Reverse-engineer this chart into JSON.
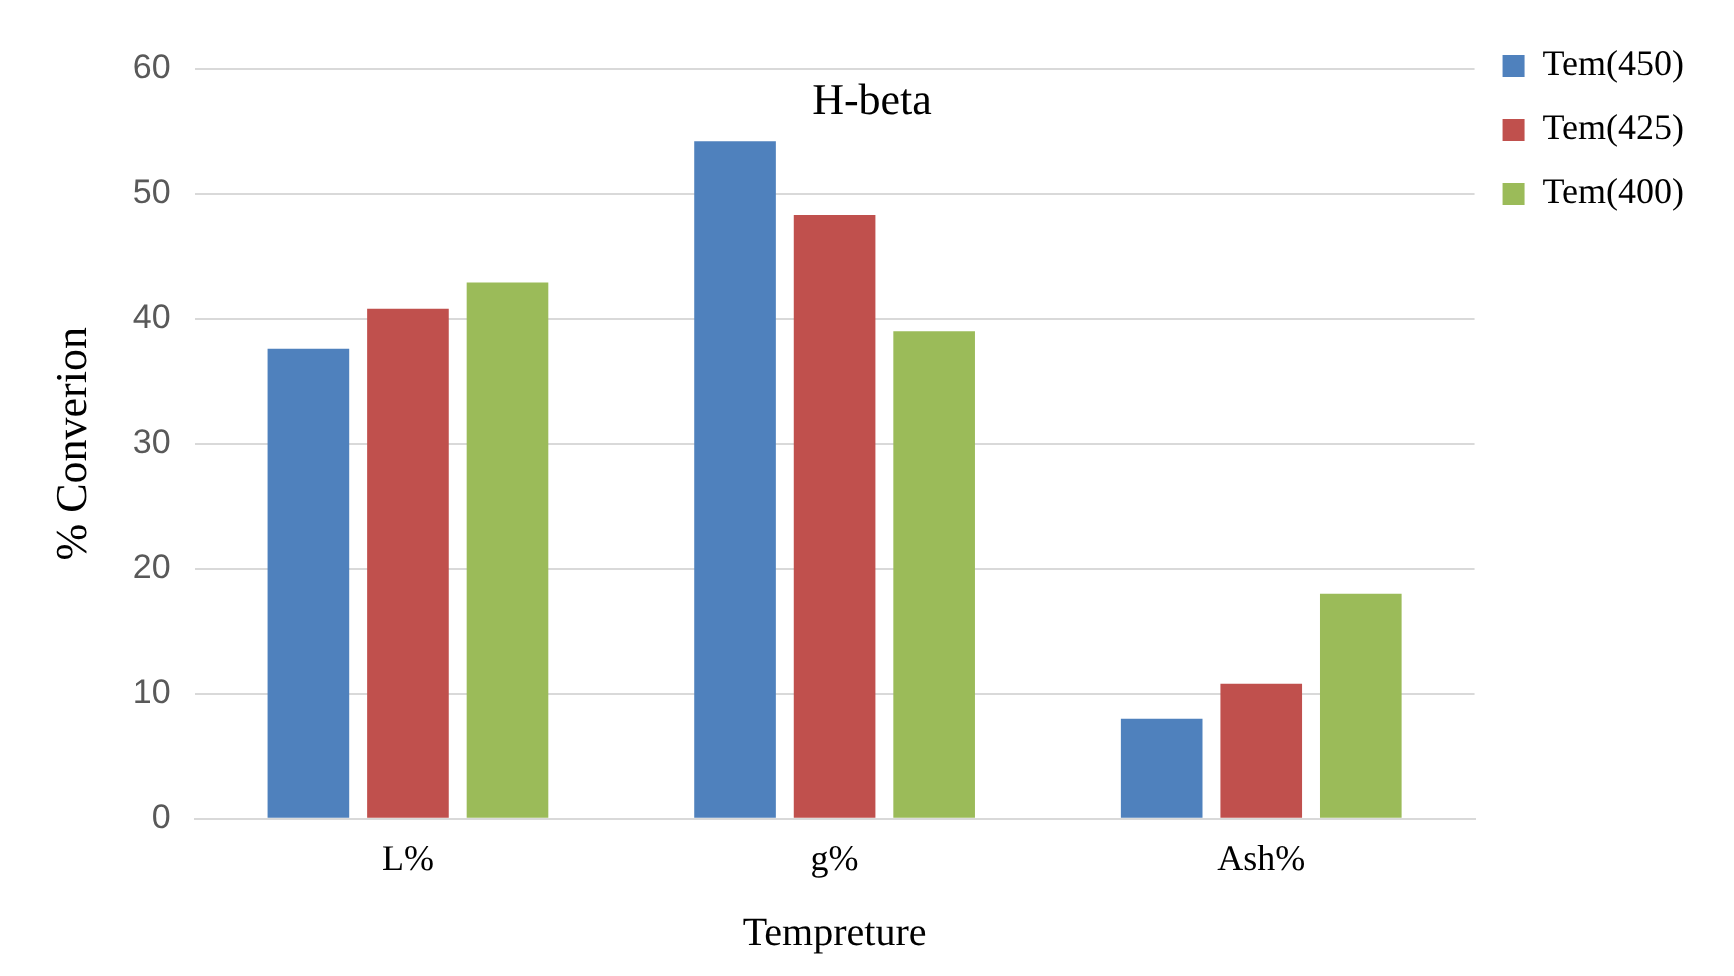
{
  "chart_data": {
    "type": "bar",
    "title": "H-beta",
    "xlabel": "Tempreture",
    "ylabel": "% Converion",
    "categories": [
      "L%",
      "g%",
      "Ash%"
    ],
    "series": [
      {
        "name": "Tem(450)",
        "color": "#4f81bd",
        "values": [
          37.6,
          54.2,
          8
        ]
      },
      {
        "name": "Tem(425)",
        "color": "#c0504d",
        "values": [
          40.8,
          48.3,
          10.8
        ]
      },
      {
        "name": "Tem(400)",
        "color": "#9bbb59",
        "values": [
          42.9,
          39,
          18
        ]
      }
    ],
    "ylim": [
      0,
      60
    ],
    "yticks": [
      0,
      10,
      20,
      30,
      40,
      50,
      60
    ],
    "grid": "y",
    "legend": "top right"
  }
}
